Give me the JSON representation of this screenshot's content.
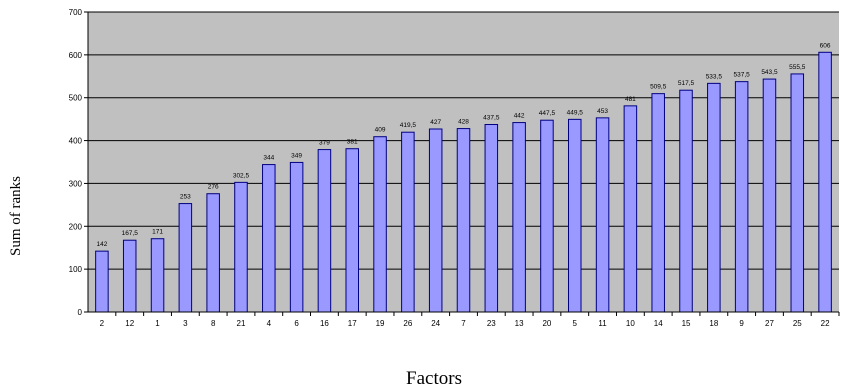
{
  "chart_data": {
    "type": "bar",
    "title": "",
    "xlabel": "Factors",
    "ylabel": "Sum of ranks",
    "ylim": [
      0,
      700
    ],
    "yticks": [
      0,
      100,
      200,
      300,
      400,
      500,
      600,
      700
    ],
    "grid": true,
    "legend": "none",
    "categories": [
      "2",
      "12",
      "1",
      "3",
      "8",
      "21",
      "4",
      "6",
      "16",
      "17",
      "19",
      "26",
      "24",
      "7",
      "23",
      "13",
      "20",
      "5",
      "11",
      "10",
      "14",
      "15",
      "18",
      "9",
      "27",
      "25",
      "22"
    ],
    "values": [
      142,
      167.5,
      171,
      253,
      276,
      302.5,
      344,
      349,
      379,
      381,
      409,
      419.5,
      427,
      428,
      437.5,
      442,
      447.5,
      449.5,
      453,
      481,
      509.5,
      517.5,
      533.5,
      537.5,
      543.5,
      555.5,
      606
    ],
    "value_labels": [
      "142",
      "167,5",
      "171",
      "253",
      "276",
      "302,5",
      "344",
      "349",
      "379",
      "381",
      "409",
      "419,5",
      "427",
      "428",
      "437,5",
      "442",
      "447,5",
      "449,5",
      "453",
      "481",
      "509,5",
      "517,5",
      "533,5",
      "537,5",
      "543,5",
      "555,5",
      "606"
    ],
    "colors": {
      "plot_background": "#c0c0c0",
      "bar_fill": "#9999ff",
      "bar_stroke": "#000080",
      "gridline": "#000000"
    }
  }
}
